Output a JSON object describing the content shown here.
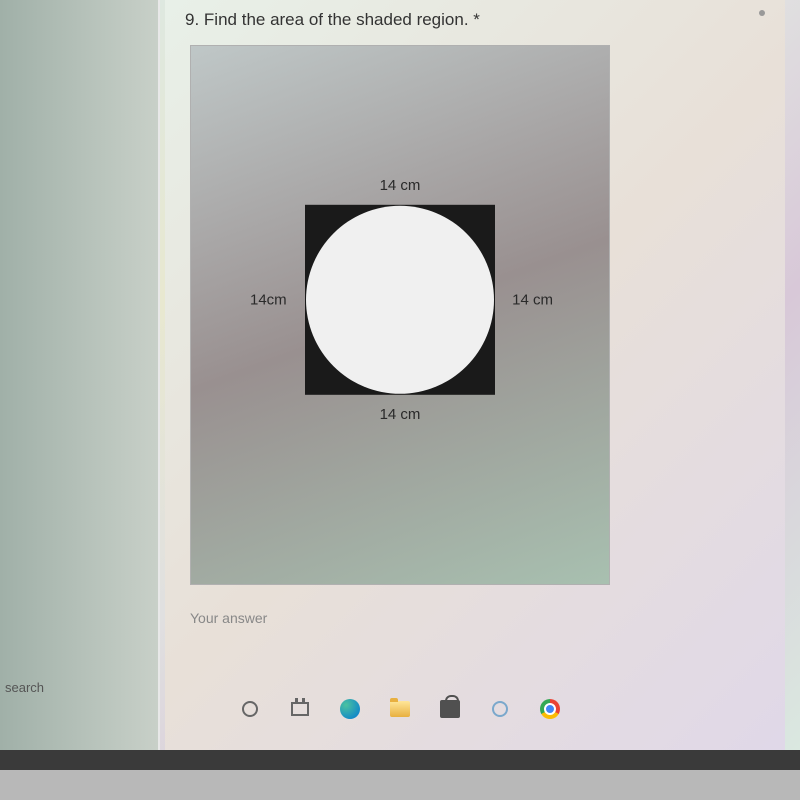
{
  "question": {
    "number": "9.",
    "text": "Find the area of the shaded region.",
    "required_marker": "*"
  },
  "figure": {
    "type": "geometry-diagram",
    "description": "square-with-inscribed-circle",
    "outer_shape": "square",
    "inner_shape": "circle",
    "shaded_region": "square-minus-circle",
    "dimensions": {
      "top": "14 cm",
      "left": "14cm",
      "right": "14 cm",
      "bottom": "14 cm"
    },
    "square_color": "#1a1a1a",
    "circle_color": "#f0f0f0",
    "figure_bg_gradient": [
      "#bfc7c7",
      "#999090",
      "#a8c0b0"
    ],
    "side_length": 14,
    "unit": "cm"
  },
  "answer_prompt": "Your answer",
  "os": {
    "search_label": "search"
  },
  "colors": {
    "page_bg": "#e8e8e0",
    "text": "#333333",
    "muted": "#888888"
  }
}
